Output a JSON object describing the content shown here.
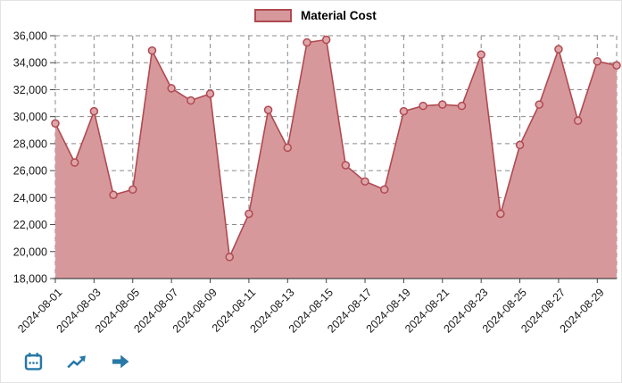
{
  "chart_data": {
    "type": "area",
    "title": "",
    "legend_position": "top-center",
    "series": [
      {
        "name": "Material Cost",
        "values": [
          29500,
          26600,
          30400,
          24200,
          24600,
          34900,
          32100,
          31200,
          31700,
          19600,
          22800,
          30500,
          27700,
          35500,
          35700,
          26400,
          25200,
          24600,
          30400,
          30800,
          30900,
          30800,
          34600,
          22800,
          27900,
          30900,
          35000,
          29700,
          34100,
          33800
        ]
      }
    ],
    "x": [
      "2024-08-01",
      "2024-08-02",
      "2024-08-03",
      "2024-08-04",
      "2024-08-05",
      "2024-08-06",
      "2024-08-07",
      "2024-08-08",
      "2024-08-09",
      "2024-08-10",
      "2024-08-11",
      "2024-08-12",
      "2024-08-13",
      "2024-08-14",
      "2024-08-15",
      "2024-08-16",
      "2024-08-17",
      "2024-08-18",
      "2024-08-19",
      "2024-08-20",
      "2024-08-21",
      "2024-08-22",
      "2024-08-23",
      "2024-08-24",
      "2024-08-25",
      "2024-08-26",
      "2024-08-27",
      "2024-08-28",
      "2024-08-29",
      "2024-08-30"
    ],
    "xtick_every": 2,
    "ylim": [
      18000,
      36000
    ],
    "yticks": [
      {
        "value": 18000,
        "label": "18,000"
      },
      {
        "value": 20000,
        "label": "20,000"
      },
      {
        "value": 22000,
        "label": "22,000"
      },
      {
        "value": 24000,
        "label": "24,000"
      },
      {
        "value": 26000,
        "label": "26,000"
      },
      {
        "value": 28000,
        "label": "28,000"
      },
      {
        "value": 30000,
        "label": "30,000"
      },
      {
        "value": 32000,
        "label": "32,000"
      },
      {
        "value": 34000,
        "label": "34,000"
      },
      {
        "value": 36000,
        "label": "36,000"
      }
    ],
    "grid": "dashed"
  },
  "colors": {
    "area_fill": "#d7989c",
    "line": "#b04a50",
    "marker_fill": "#dfa6aa",
    "grid": "#8a8a8a",
    "axis": "#444444",
    "tick_text": "#1a1a1a",
    "icon_blue": "#2878a8"
  },
  "toolbar": {
    "icons": [
      {
        "name": "calendar-icon"
      },
      {
        "name": "trend-icon"
      },
      {
        "name": "forward-arrow-icon"
      }
    ]
  }
}
